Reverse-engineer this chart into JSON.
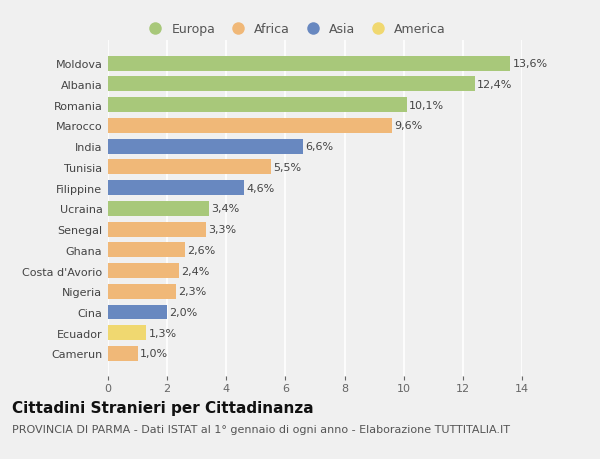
{
  "countries": [
    "Camerun",
    "Ecuador",
    "Cina",
    "Nigeria",
    "Costa d'Avorio",
    "Ghana",
    "Senegal",
    "Ucraina",
    "Filippine",
    "Tunisia",
    "India",
    "Marocco",
    "Romania",
    "Albania",
    "Moldova"
  ],
  "values": [
    1.0,
    1.3,
    2.0,
    2.3,
    2.4,
    2.6,
    3.3,
    3.4,
    4.6,
    5.5,
    6.6,
    9.6,
    10.1,
    12.4,
    13.6
  ],
  "labels": [
    "1,0%",
    "1,3%",
    "2,0%",
    "2,3%",
    "2,4%",
    "2,6%",
    "3,3%",
    "3,4%",
    "4,6%",
    "5,5%",
    "6,6%",
    "9,6%",
    "10,1%",
    "12,4%",
    "13,6%"
  ],
  "continents": [
    "Africa",
    "America",
    "Asia",
    "Africa",
    "Africa",
    "Africa",
    "Africa",
    "Europa",
    "Asia",
    "Africa",
    "Asia",
    "Africa",
    "Europa",
    "Europa",
    "Europa"
  ],
  "continent_colors": {
    "Europa": "#a8c87a",
    "Africa": "#f0b878",
    "Asia": "#6888c0",
    "America": "#f0d870"
  },
  "legend_order": [
    "Europa",
    "Africa",
    "Asia",
    "America"
  ],
  "xlim": [
    0,
    14
  ],
  "xticks": [
    0,
    2,
    4,
    6,
    8,
    10,
    12,
    14
  ],
  "title": "Cittadini Stranieri per Cittadinanza",
  "subtitle": "PROVINCIA DI PARMA - Dati ISTAT al 1° gennaio di ogni anno - Elaborazione TUTTITALIA.IT",
  "background_color": "#f0f0f0",
  "plot_background": "#f0f0f0",
  "grid_color": "#ffffff",
  "bar_height": 0.72,
  "title_fontsize": 11,
  "subtitle_fontsize": 8,
  "label_fontsize": 8,
  "tick_fontsize": 8,
  "legend_fontsize": 9
}
